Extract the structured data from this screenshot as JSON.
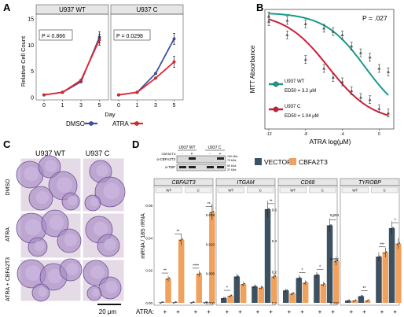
{
  "panels": {
    "A": {
      "letter": "A",
      "facets": [
        {
          "title": "U937 WT",
          "pvalue": "P = 0.866"
        },
        {
          "title": "U937 C",
          "pvalue": "P = 0.0298"
        }
      ],
      "ylabel": "Relative Cell Count",
      "xlabel": "Day",
      "yticks": [
        "0",
        "5",
        "10",
        "15"
      ],
      "xticks": [
        "0",
        "1",
        "3",
        "5"
      ],
      "legend": [
        {
          "label": "DMSO",
          "color": "#3f51a8"
        },
        {
          "label": "ATRA",
          "color": "#e8262a"
        }
      ]
    },
    "B": {
      "letter": "B",
      "pvalue": "P = .027",
      "ylabel": "MTT Absorbance",
      "xlabel": "ATRA log(μM)",
      "xticks": [
        "-12",
        "-8",
        "-4",
        "0"
      ],
      "legend": [
        {
          "label": "U937 WT",
          "sub": "ED50 = 3.2 μM",
          "color": "#1a9a8a"
        },
        {
          "label": "U937 C",
          "sub": "ED50 = 1.04 μM",
          "color": "#cc1f3a"
        }
      ]
    },
    "C": {
      "letter": "C",
      "cols": [
        "U937 WT",
        "U937 C"
      ],
      "rows": [
        "DMSO",
        "ATRA",
        "ATRA + CBFA2T3"
      ],
      "scalebar": "20 μm"
    },
    "D": {
      "letter": "D",
      "blot": {
        "cols": [
          "U937 WT",
          "U937 C"
        ],
        "cbf_label": "CBFA2T3:",
        "signs": [
          "-",
          "+",
          "-",
          "+"
        ],
        "rows": [
          "α-CBFA2T3",
          "α-TBP"
        ],
        "mw": [
          "100 kDa",
          "75 kDa",
          "50 kDa",
          "37 kDa"
        ]
      },
      "legend": [
        {
          "label": "VECTOR",
          "color": "#3d5160"
        },
        {
          "label": "CBFA2T3",
          "color": "#f0a15b"
        }
      ],
      "ylabel": "mRNA / 18S rRNA",
      "groups": [
        "WT",
        "C"
      ],
      "atra_label": "ATRA:",
      "atra_sign": "+",
      "genes": [
        {
          "name": "CBFA2T3",
          "yticks": [
            "0.00",
            "0.02",
            "0.04",
            "0.06"
          ],
          "ymax": 0.065,
          "bars": [
            0.0003,
            0.015,
            0.0003,
            0.039,
            0.0003,
            0.018,
            0.0003,
            0.056
          ],
          "sig": [
            "**",
            "**",
            "****",
            "**"
          ]
        },
        {
          "name": "ITGAM",
          "yticks": [
            "0.000",
            "0.005",
            "0.010",
            "0.015"
          ],
          "ymax": 0.018,
          "bars": [
            0.0008,
            0.0012,
            0.0045,
            0.0032,
            0.0028,
            0.0026,
            0.016,
            0.0045
          ],
          "sig": [
            "*",
            "",
            "",
            "**"
          ]
        },
        {
          "name": "CD68",
          "yticks": [
            "0.0",
            "0.2",
            "0.4",
            "0.6"
          ],
          "ymax": 0.68,
          "bars": [
            0.08,
            0.06,
            0.16,
            0.13,
            0.18,
            0.12,
            0.5,
            0.27
          ],
          "sig": [
            "",
            "*",
            "*",
            "*"
          ]
        },
        {
          "name": "TYROBP",
          "yticks": [
            "0.000",
            "0.002",
            "0.004"
          ],
          "ymax": 0.0048,
          "bars": [
            0.0001,
            0.0001,
            0.0003,
            0.0001,
            0.0021,
            0.0023,
            0.0034,
            0.0027
          ],
          "sig": [
            "",
            "**",
            "***",
            "*"
          ]
        }
      ]
    }
  },
  "chart_data": [
    {
      "type": "line",
      "title": "U937 WT",
      "xlabel": "Day",
      "ylabel": "Relative Cell Count",
      "x": [
        0,
        1,
        3,
        5
      ],
      "ylim": [
        0,
        15
      ],
      "series": [
        {
          "name": "DMSO",
          "values": [
            0.5,
            1,
            3,
            11.5
          ]
        },
        {
          "name": "ATRA",
          "values": [
            0.5,
            1,
            3.3,
            11
          ]
        }
      ],
      "annotation": "P = 0.866"
    },
    {
      "type": "line",
      "title": "U937 C",
      "xlabel": "Day",
      "ylabel": "Relative Cell Count",
      "x": [
        0,
        1,
        3,
        5
      ],
      "ylim": [
        0,
        15
      ],
      "series": [
        {
          "name": "DMSO",
          "values": [
            0.5,
            1,
            4.6,
            11.2
          ]
        },
        {
          "name": "ATRA",
          "values": [
            0.5,
            1,
            3.7,
            6.8
          ]
        }
      ],
      "annotation": "P = 0.0298"
    },
    {
      "type": "scatter",
      "xlabel": "ATRA log(μM)",
      "ylabel": "MTT Absorbance",
      "xlim": [
        -12,
        1
      ],
      "series": [
        {
          "name": "U937 WT",
          "x": [
            -12,
            -10,
            -8,
            -6,
            -5,
            -4,
            -3,
            -2,
            -1,
            0,
            1
          ],
          "values": [
            0.97,
            0.93,
            0.9,
            0.86,
            0.83,
            0.8,
            0.7,
            0.64,
            0.6,
            0.5,
            0.47
          ]
        },
        {
          "name": "U937 C",
          "x": [
            -12,
            -10,
            -8,
            -6,
            -5,
            -4,
            -3,
            -2,
            -1,
            0,
            1
          ],
          "values": [
            0.92,
            0.8,
            0.58,
            0.5,
            0.42,
            0.38,
            0.3,
            0.24,
            0.22,
            0.14,
            0.1
          ]
        }
      ],
      "annotation": "P = .027"
    }
  ]
}
